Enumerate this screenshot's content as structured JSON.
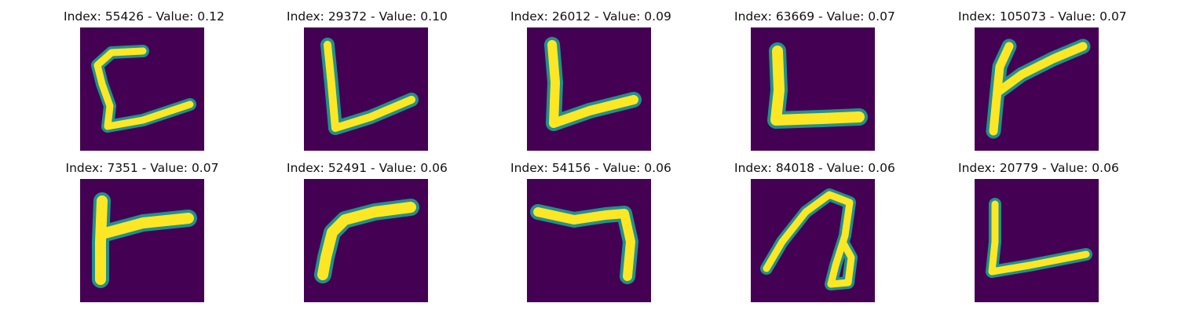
{
  "figure": {
    "colormap": {
      "background": "#440154",
      "edge": "#21918c",
      "mid": "#5ec962",
      "stroke": "#fde725"
    },
    "panels": [
      {
        "title": "Index: 55426 - Value: 0.12",
        "glyph": "hook-letter-c"
      },
      {
        "title": "Index: 29372 - Value: 0.10",
        "glyph": "letter-l"
      },
      {
        "title": "Index: 26012 - Value: 0.09",
        "glyph": "letter-v"
      },
      {
        "title": "Index: 63669 - Value: 0.07",
        "glyph": "letter-l-thick"
      },
      {
        "title": "Index: 105073 - Value: 0.07",
        "glyph": "letter-k"
      },
      {
        "title": "Index: 7351 - Value: 0.07",
        "glyph": "letter-f"
      },
      {
        "title": "Index: 52491 - Value: 0.06",
        "glyph": "curved-stroke"
      },
      {
        "title": "Index: 54156 - Value: 0.06",
        "glyph": "digit-seven"
      },
      {
        "title": "Index: 84018 - Value: 0.06",
        "glyph": "loop-letter-n"
      },
      {
        "title": "Index: 20779 - Value: 0.06",
        "glyph": "letter-l-thin"
      }
    ]
  }
}
